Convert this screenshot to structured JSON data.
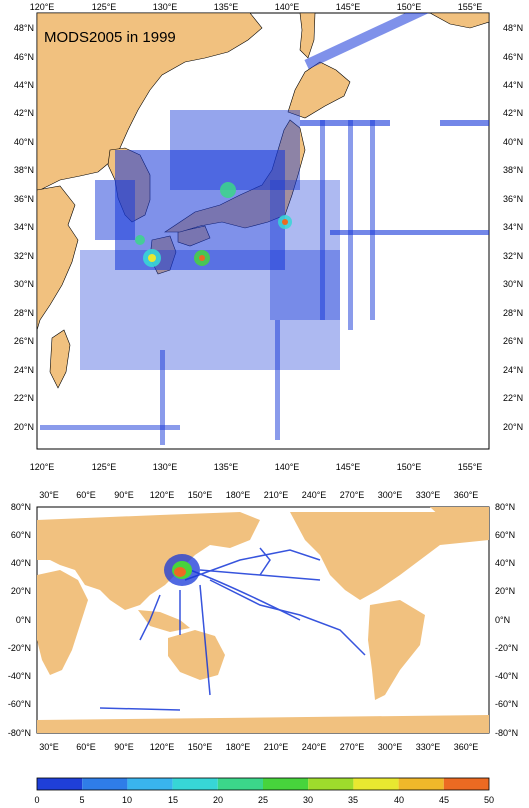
{
  "top_map": {
    "title": "MODS2005 in 1999",
    "lon_labels": [
      "120°E",
      "125°E",
      "130°E",
      "135°E",
      "140°E",
      "145°E",
      "150°E",
      "155°E"
    ],
    "lat_labels": [
      "48°N",
      "46°N",
      "44°N",
      "42°N",
      "40°N",
      "38°N",
      "36°N",
      "34°N",
      "32°N",
      "30°N",
      "28°N",
      "26°N",
      "24°N",
      "22°N",
      "20°N"
    ]
  },
  "bottom_map": {
    "lon_labels": [
      "30°E",
      "60°E",
      "90°E",
      "120°E",
      "150°E",
      "180°E",
      "210°E",
      "240°E",
      "270°E",
      "300°E",
      "330°E",
      "360°E"
    ],
    "lat_labels": [
      "80°N",
      "60°N",
      "40°N",
      "20°N",
      "0°N",
      "-20°N",
      "-40°N",
      "-60°N",
      "-80°N"
    ]
  },
  "colorbar": {
    "labels": [
      "0",
      "5",
      "10",
      "15",
      "20",
      "25",
      "30",
      "35",
      "40",
      "45",
      "50"
    ],
    "colors": [
      "#1f3fd8",
      "#2f7de8",
      "#39b4ee",
      "#37d6d6",
      "#3bd68a",
      "#47d43c",
      "#9edc2c",
      "#e8e830",
      "#f0b82a",
      "#ec6a22"
    ]
  },
  "colors": {
    "land": "#f1c17f",
    "ocean": "#ffffff",
    "density_low": "#1537d8"
  }
}
